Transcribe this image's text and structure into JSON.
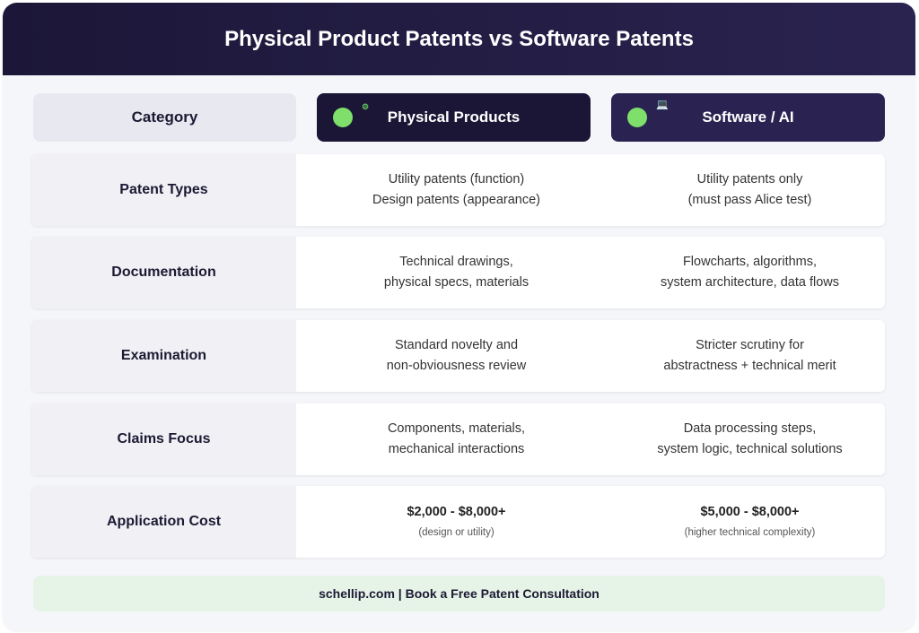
{
  "title": "Physical Product Patents vs Software Patents",
  "columns": {
    "category": "Category",
    "physical": "Physical Products",
    "software": "Software / AI",
    "physical_icon": "gear-icon",
    "software_icon": "laptop-icon"
  },
  "rows": [
    {
      "label": "Patent Types",
      "physical": [
        "Utility patents (function)",
        "Design patents (appearance)"
      ],
      "software": [
        "Utility patents only",
        "(must pass Alice test)"
      ]
    },
    {
      "label": "Documentation",
      "physical": [
        "Technical drawings,",
        "physical specs, materials"
      ],
      "software": [
        "Flowcharts, algorithms,",
        "system architecture, data flows"
      ]
    },
    {
      "label": "Examination",
      "physical": [
        "Standard novelty and",
        "non-obviousness review"
      ],
      "software": [
        "Stricter scrutiny for",
        "abstractness + technical merit"
      ]
    },
    {
      "label": "Claims Focus",
      "physical": [
        "Components, materials,",
        "mechanical interactions"
      ],
      "software": [
        "Data processing steps,",
        "system logic, technical solutions"
      ]
    },
    {
      "label": "Application Cost",
      "physical": [
        "$2,000 - $8,000+",
        "(design or utility)"
      ],
      "software": [
        "$5,000 - $8,000+",
        "(higher technical complexity)"
      ]
    }
  ],
  "footer": "schellip.com | Book a Free Patent Consultation",
  "colors": {
    "header": "#1c1738",
    "physical": "#1c1636",
    "software": "#2a2352",
    "accent": "#7ee06b",
    "footer": "#e6f3e7"
  }
}
